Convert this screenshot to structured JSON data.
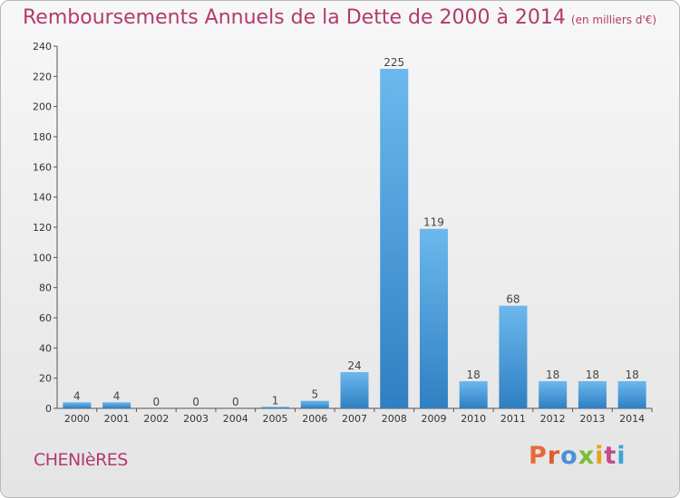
{
  "title": "Remboursements Annuels de la Dette de 2000 à 2014",
  "unit": "(en milliers d'€)",
  "commune": "CHENIèRES",
  "logo": {
    "text": "Proxiti",
    "colors": [
      "#e8683a",
      "#e05a32",
      "#4a90d9",
      "#7cbb3b",
      "#e5a21f",
      "#c54b8c",
      "#3aa6d6"
    ]
  },
  "colors": {
    "bar_top": "#6cb8ee",
    "bar_bottom": "#2f7fc2",
    "title": "#b23a6e"
  },
  "chart_data": {
    "type": "bar",
    "categories": [
      "2000",
      "2001",
      "2002",
      "2003",
      "2004",
      "2005",
      "2006",
      "2007",
      "2008",
      "2009",
      "2010",
      "2011",
      "2012",
      "2013",
      "2014"
    ],
    "values": [
      4,
      4,
      0,
      0,
      0,
      1,
      5,
      24,
      225,
      119,
      18,
      68,
      18,
      18,
      18
    ],
    "ylim": [
      0,
      240
    ],
    "yticks": [
      0,
      20,
      40,
      60,
      80,
      100,
      120,
      140,
      160,
      180,
      200,
      220,
      240
    ],
    "grid": false
  }
}
